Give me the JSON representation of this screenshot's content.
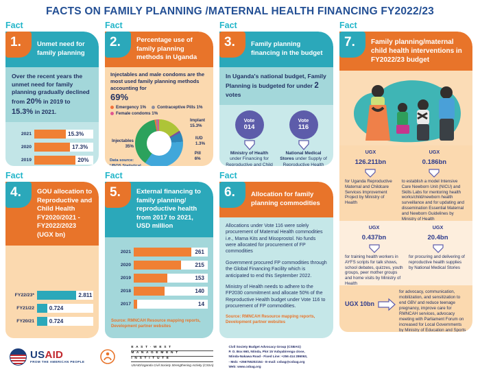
{
  "page": {
    "title": "FACTS ON FAMILY PLANNING /MATERNAL HEALTH FINANCING FY2022/23"
  },
  "fact_word": "Fact",
  "colors": {
    "teal": "#2ba8ba",
    "orange": "#e8742a",
    "navy_text": "#223263",
    "title_blue": "#234f94",
    "fact_label_teal": "#21b5c9",
    "purple": "#5d5caa",
    "bar_orange": "#f08034",
    "bar_teal": "#2ba8ba",
    "ugx_blue": "#2d3a8c"
  },
  "facts": {
    "f1": {
      "num": "1.",
      "title": "Unmet need for family planning",
      "p_a": "Over the recent years the unmet need for family planning gradually declined from ",
      "p_b": "20%",
      "p_c": " in 2019 to ",
      "p_d": "15.3%",
      "p_e": " in 2021."
    },
    "f2": {
      "num": "2.",
      "title": "Percentage use of family planning methods in Uganda",
      "lead": "Injectables and male condoms are the most used family planning methods accounting for",
      "lead_big": "69%",
      "source_l1": "Data source:",
      "source_l2": "UBOS Statistical",
      "source_l3": "Abstract 2021"
    },
    "f3": {
      "num": "3.",
      "title": "Family planning financing in the budget",
      "p_a": "In Uganda's national budget, Family Planning is budgeted for under ",
      "p_b": "2",
      "p_c": " votes",
      "votes": [
        {
          "circle_l1": "Vote",
          "circle_l2": "014",
          "bold": "Ministry of Health",
          "rest": " under Financing for Reproductive and Child Health"
        },
        {
          "circle_l1": "Vote",
          "circle_l2": "116",
          "bold": "National Medical Stores",
          "rest": " under Supply of Reproductive Health Items"
        }
      ]
    },
    "f4": {
      "num": "4.",
      "title": "GOU allocation to Reproductive and Child Health FY2020/2021 - FY2022/2023 (UGX bn)"
    },
    "f5": {
      "num": "5.",
      "title": "External financing to family planning/ reproductive health from 2017 to 2021, USD million",
      "source_l1": "Source: RMNCAH Resource mapping reports,",
      "source_l2": "Development partner websites"
    },
    "f6": {
      "num": "6.",
      "title": "Allocation for family planning commodities",
      "p1": "Allocations under Vote 116 were solely procurement of Maternal Health commodities i.e., Mama Kits and Misoprostol. No funds were allocated for procurement of FP commodities",
      "p2": "Government procured FP commodities through the Global Financing Facility which is anticipated to end this September 2022.",
      "p3": "Ministry of Health needs to adhere to the FP2030 commitment and allocate 50% of the Reproductive Health budget under Vote 116 to procurement of FP commodities.",
      "source": "Source: RMNCAH Resource mapping reports, Development partner websites"
    },
    "f7": {
      "num": "7.",
      "title": "Family planning/maternal child health interventions in FY2022/23 budget",
      "items": [
        {
          "currency": "UGX",
          "amount": "126.211bn",
          "desc": "for Uganda Reproductive Maternal and Childcare Services Improvement Project by Ministry of Health"
        },
        {
          "currency": "UGX",
          "amount": "0.186bn",
          "desc": "to establish a model Intensive Care Newborn Unit (NICU) and Skills Labs for mentoring health works/child/newborn health surveillance and for updating and dissemination Essential Maternal and Newborn Guidelines by Ministry of Health"
        },
        {
          "currency": "UGX",
          "amount": "0.437bn",
          "desc": "for training health workers in AYFS scripts for talk shows, school debates, quizzes, youth groups, peer mother groups and home visits by Ministry of Health"
        },
        {
          "currency": "UGX",
          "amount": "20.4bn",
          "desc": "for procuring and delivering of reproductive health supplies by National Medical Stories"
        },
        {
          "currency": "UGX",
          "amount": "10bn",
          "desc": "for advocacy, communication, mobilization, and sensitization to end GBV and reduce teenage pregnancy, improve care for RMNCAH services, advocacy meeting with Parliament Forum on increased for Local Governments by Ministry of Education and Sports"
        }
      ]
    }
  },
  "chart_data": [
    {
      "id": "unmet_need",
      "type": "bar",
      "orientation": "horizontal",
      "title": "Unmet need for family planning (%)",
      "categories": [
        "2021",
        "2020",
        "2019"
      ],
      "values": [
        15.3,
        17.3,
        20
      ],
      "value_labels": [
        "15.3%",
        "17.3%",
        "20%"
      ],
      "axis_max": 20,
      "bar_color": "#f08034",
      "track_color": "#ffffff",
      "fill_frac": 0.7
    },
    {
      "id": "fp_methods",
      "type": "donut",
      "title": "Percentage use of family planning methods in Uganda",
      "slices": [
        {
          "label": "Implant",
          "pct": "15.3%",
          "value": 15.3,
          "color": "#aec437"
        },
        {
          "label": "IUD",
          "pct": "1.3%",
          "value": 1.3,
          "color": "#7a4f9e"
        },
        {
          "label": "Pill",
          "pct": "6%",
          "value": 6,
          "color": "#2e86b8"
        },
        {
          "label": "Male condom",
          "pct": "34%",
          "value": 34,
          "color": "#41a7da"
        },
        {
          "label": "Injectables",
          "pct": "35%",
          "value": 35,
          "color": "#2ca25c"
        },
        {
          "label": "Emergency",
          "pct": "1%",
          "value": 1,
          "color": "#f2703a"
        },
        {
          "label": "Contraceptive Pills",
          "pct": "1%",
          "value": 1,
          "color": "#8d8d9f"
        },
        {
          "label": "Female condoms",
          "pct": "1%",
          "value": 1,
          "color": "#df5590"
        }
      ]
    },
    {
      "id": "gou_allocation",
      "type": "bar",
      "orientation": "horizontal",
      "title": "GOU allocation to Reproductive and Child Health (UGX bn)",
      "categories": [
        "FY22/23*",
        "FY21/22",
        "FY20/21"
      ],
      "values": [
        2.811,
        0.724,
        0.724
      ],
      "value_labels": [
        "2.811",
        "0.724",
        "0.724"
      ],
      "axis_max": 2.811,
      "bar_color": "#2ba8ba",
      "track_color": "#ffffff",
      "fill_frac": 0.7
    },
    {
      "id": "external_financing",
      "type": "bar",
      "orientation": "horizontal",
      "title": "External financing to family planning/reproductive health, USD million",
      "categories": [
        "2021",
        "2020",
        "2019",
        "2018",
        "2017"
      ],
      "values": [
        261,
        215,
        153,
        140,
        14
      ],
      "value_labels": [
        "261",
        "215",
        "153",
        "140",
        "14"
      ],
      "axis_max": 261,
      "bar_color": "#f08034",
      "track_color": "#ffffff",
      "fill_frac": 0.78,
      "value_at_end": true
    }
  ],
  "footer": {
    "usaid": {
      "word_us": "US",
      "word_aid": "AID",
      "tagline": "FROM THE AMERICAN PEOPLE"
    },
    "ewmi": {
      "l1": "E A S T · W E S T",
      "l2": "M A N A G E M E N T",
      "l3": "I N S T I T U T E",
      "sub": "USAID/Uganda Civil Society Strengthening Activity (CSSA)"
    },
    "contact": {
      "l1": "Civil Society Budget Advocacy Group (CSBAG)",
      "l2": "P. O. Box 660, Ntinda, Plot 15 Vubyabirenga close,",
      "l3": "Ntinda-Nakawa Road - Fixed Line: +256 414 286063,",
      "l4": "- Mob: +256755202154 - E-mail: csbag@csbag.org",
      "l5": "Web: www.csbag.org"
    }
  }
}
